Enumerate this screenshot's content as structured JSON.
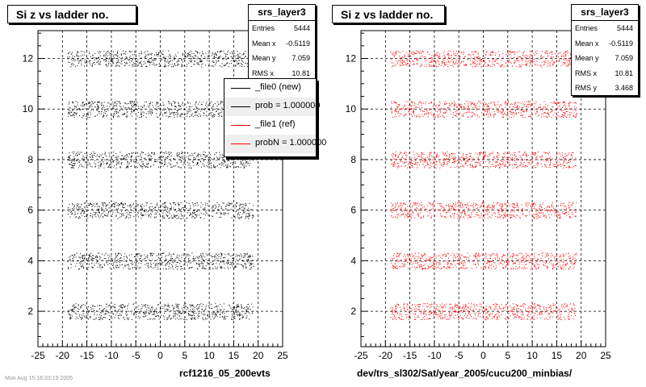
{
  "chart_data": [
    {
      "type": "scatter",
      "title": "Si z vs ladder no.",
      "xlabel": "rcf1216_05_200evts",
      "ylabel": "",
      "xlim": [
        -25,
        25
      ],
      "ylim": [
        0.6,
        13.1
      ],
      "xticks": [
        "-25",
        "-20",
        "-15",
        "-10",
        "-5",
        "0",
        "5",
        "10",
        "15",
        "20",
        "25"
      ],
      "yticks": [
        "2",
        "4",
        "6",
        "8",
        "10",
        "12"
      ],
      "grid": true,
      "marker_color": "#000000",
      "bands": [
        {
          "y": 2,
          "x_range": [
            -19,
            19
          ]
        },
        {
          "y": 4,
          "x_range": [
            -19,
            19
          ]
        },
        {
          "y": 6,
          "x_range": [
            -19,
            19
          ]
        },
        {
          "y": 8,
          "x_range": [
            -19,
            19
          ]
        },
        {
          "y": 10,
          "x_range": [
            -19,
            19
          ]
        },
        {
          "y": 12,
          "x_range": [
            -19,
            19
          ]
        }
      ],
      "stats": {
        "name": "srs_layer3",
        "rows": [
          {
            "label": "Entries",
            "value": "5444"
          },
          {
            "label": "Mean x",
            "value": "-0.5119"
          },
          {
            "label": "Mean y",
            "value": "7.059"
          },
          {
            "label": "RMS x",
            "value": "10.81"
          }
        ]
      },
      "legend": {
        "placement": "top-right",
        "entries": [
          {
            "label": "_file0 (new)",
            "color": "#000000"
          },
          {
            "label": "prob = 1.000000",
            "color": "#000000"
          },
          {
            "label": "_file1 (ref)",
            "color": "#ff0000"
          },
          {
            "label": "probN = 1.000000",
            "color": "#ff0000"
          }
        ]
      }
    },
    {
      "type": "scatter",
      "title": "Si z vs ladder no.",
      "xlabel": "dev/trs_sl302/Sat/year_2005/cucu200_minbias/",
      "ylabel": "",
      "xlim": [
        -25,
        25
      ],
      "ylim": [
        0.6,
        13.1
      ],
      "xticks": [
        "-25",
        "-20",
        "-15",
        "-10",
        "-5",
        "0",
        "5",
        "10",
        "15",
        "20",
        "25"
      ],
      "yticks": [
        "2",
        "4",
        "6",
        "8",
        "10",
        "12"
      ],
      "grid": true,
      "marker_color": "#ff0000",
      "bands": [
        {
          "y": 2,
          "x_range": [
            -19,
            19
          ]
        },
        {
          "y": 4,
          "x_range": [
            -19,
            19
          ]
        },
        {
          "y": 6,
          "x_range": [
            -19,
            19
          ]
        },
        {
          "y": 8,
          "x_range": [
            -19,
            19
          ]
        },
        {
          "y": 10,
          "x_range": [
            -19,
            19
          ]
        },
        {
          "y": 12,
          "x_range": [
            -19,
            19
          ]
        }
      ],
      "stats": {
        "name": "srs_layer3",
        "rows": [
          {
            "label": "Entries",
            "value": "5444"
          },
          {
            "label": "Mean x",
            "value": "-0.5119"
          },
          {
            "label": "Mean y",
            "value": "7.059"
          },
          {
            "label": "RMS x",
            "value": "10.81"
          },
          {
            "label": "RMS y",
            "value": "3.468"
          }
        ]
      }
    }
  ],
  "footer_text": "Mon Aug 15 16:33:19 2005"
}
